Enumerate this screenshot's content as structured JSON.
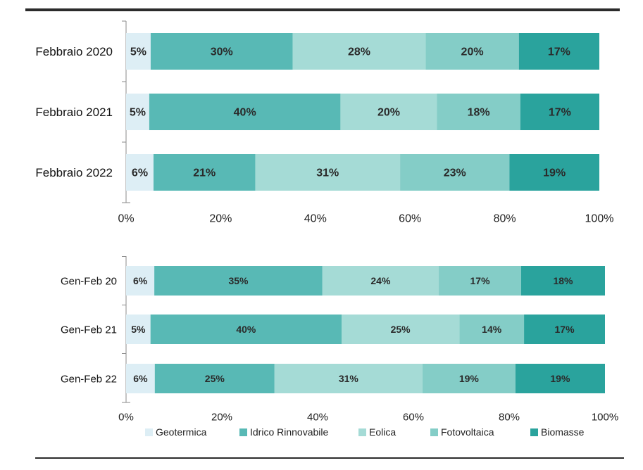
{
  "colors": {
    "Geotermica": "#ddeef5",
    "Idrico Rinnovabile": "#58b9b5",
    "Eolica": "#a5dbd6",
    "Fotovoltaica": "#84cdc7",
    "Biomasse": "#2aa39d"
  },
  "legend": [
    "Geotermica",
    "Idrico Rinnovabile",
    "Eolica",
    "Fotovoltaica",
    "Biomasse"
  ],
  "chart_data": [
    {
      "type": "bar",
      "orientation": "horizontal",
      "stacked": "percent",
      "categories": [
        "Febbraio 2020",
        "Febbraio 2021",
        "Febbraio 2022"
      ],
      "series": [
        {
          "name": "Geotermica",
          "values": [
            5,
            5,
            6
          ]
        },
        {
          "name": "Idrico Rinnovabile",
          "values": [
            30,
            40,
            21
          ]
        },
        {
          "name": "Eolica",
          "values": [
            28,
            20,
            31
          ]
        },
        {
          "name": "Fotovoltaica",
          "values": [
            20,
            18,
            23
          ]
        },
        {
          "name": "Biomasse",
          "values": [
            17,
            17,
            19
          ]
        }
      ],
      "shares": [
        [
          5.2,
          30.0,
          28.1,
          19.7,
          17.0
        ],
        [
          4.9,
          40.4,
          20.4,
          17.6,
          16.7
        ],
        [
          5.8,
          21.5,
          30.6,
          23.1,
          19.0
        ]
      ],
      "xlim": [
        0,
        100
      ],
      "xticks": [
        "0%",
        "20%",
        "40%",
        "60%",
        "80%",
        "100%"
      ]
    },
    {
      "type": "bar",
      "orientation": "horizontal",
      "stacked": "percent",
      "categories": [
        "Gen-Feb 20",
        "Gen-Feb 21",
        "Gen-Feb 22"
      ],
      "series": [
        {
          "name": "Geotermica",
          "values": [
            6,
            5,
            6
          ]
        },
        {
          "name": "Idrico Rinnovabile",
          "values": [
            35,
            40,
            25
          ]
        },
        {
          "name": "Eolica",
          "values": [
            24,
            25,
            31
          ]
        },
        {
          "name": "Fotovoltaica",
          "values": [
            17,
            14,
            19
          ]
        },
        {
          "name": "Biomasse",
          "values": [
            18,
            17,
            19
          ]
        }
      ],
      "shares": [
        [
          5.9,
          35.1,
          24.3,
          17.2,
          17.5
        ],
        [
          5.1,
          39.9,
          24.6,
          13.5,
          16.9
        ],
        [
          6.0,
          25.0,
          30.9,
          19.4,
          18.7
        ]
      ],
      "xlim": [
        0,
        100
      ],
      "xticks": [
        "0%",
        "20%",
        "40%",
        "60%",
        "80%",
        "100%"
      ]
    }
  ]
}
